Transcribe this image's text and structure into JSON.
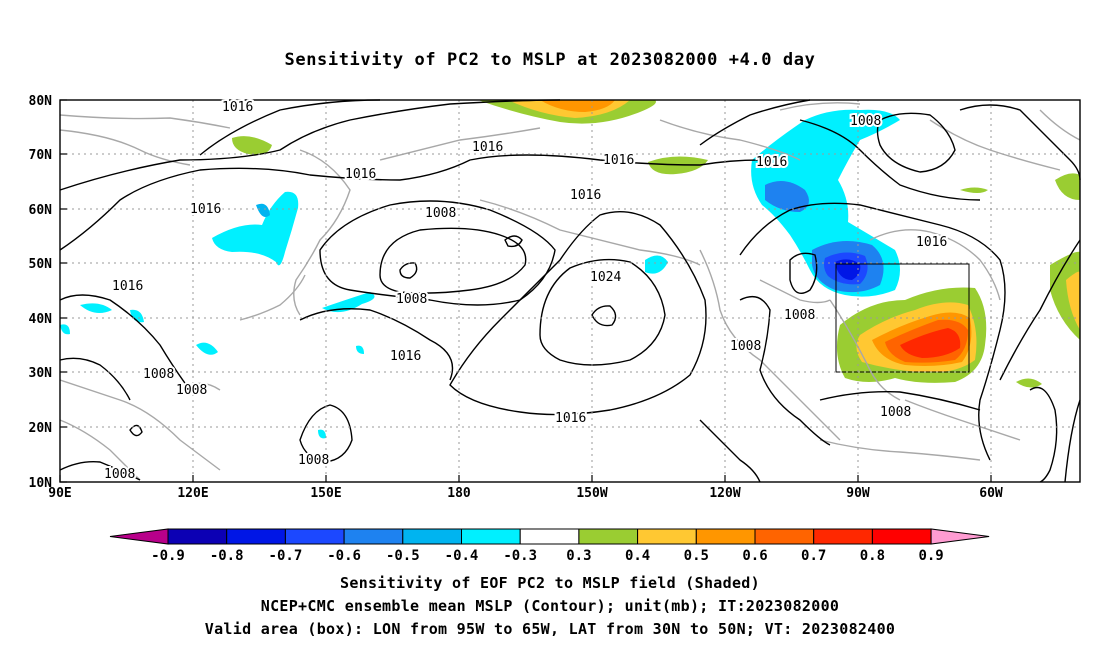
{
  "title": "Sensitivity of PC2 to MSLP at 2023082000 +4.0 day",
  "map": {
    "lon_labels": [
      "90E",
      "120E",
      "150E",
      "180",
      "150W",
      "120W",
      "90W",
      "60W"
    ],
    "lat_labels": [
      "10N",
      "20N",
      "30N",
      "40N",
      "50N",
      "60N",
      "70N",
      "80N"
    ],
    "contour_labels": [
      "1016",
      "1016",
      "1016",
      "1016",
      "1016",
      "1016",
      "1016",
      "1016",
      "1016",
      "1016",
      "1008",
      "1008",
      "1008",
      "1008",
      "1008",
      "1008",
      "1008",
      "1008",
      "1008",
      "1024",
      "1016"
    ],
    "box_lon": "95W to 65W",
    "box_lat": "30N to 50N"
  },
  "colorbar": {
    "labels": [
      "-0.9",
      "-0.8",
      "-0.7",
      "-0.6",
      "-0.5",
      "-0.4",
      "-0.3",
      "0.3",
      "0.4",
      "0.5",
      "0.6",
      "0.7",
      "0.8",
      "0.9"
    ],
    "colors": [
      "#b8008a",
      "#0c00b4",
      "#0016e6",
      "#1c48ff",
      "#1e82f0",
      "#00b4f0",
      "#00f0ff",
      "#ffffff",
      "#9acd32",
      "#ffc832",
      "#ff9600",
      "#ff6400",
      "#ff2800",
      "#ff0000",
      "#ff9cd2"
    ]
  },
  "caption": {
    "line1": "Sensitivity of EOF PC2 to MSLP field (Shaded)",
    "line2": "NCEP+CMC ensemble mean MSLP (Contour); unit(mb); IT:2023082000",
    "line3": "Valid area (box): LON from 95W to 65W, LAT from 30N to 50N; VT: 2023082400"
  }
}
